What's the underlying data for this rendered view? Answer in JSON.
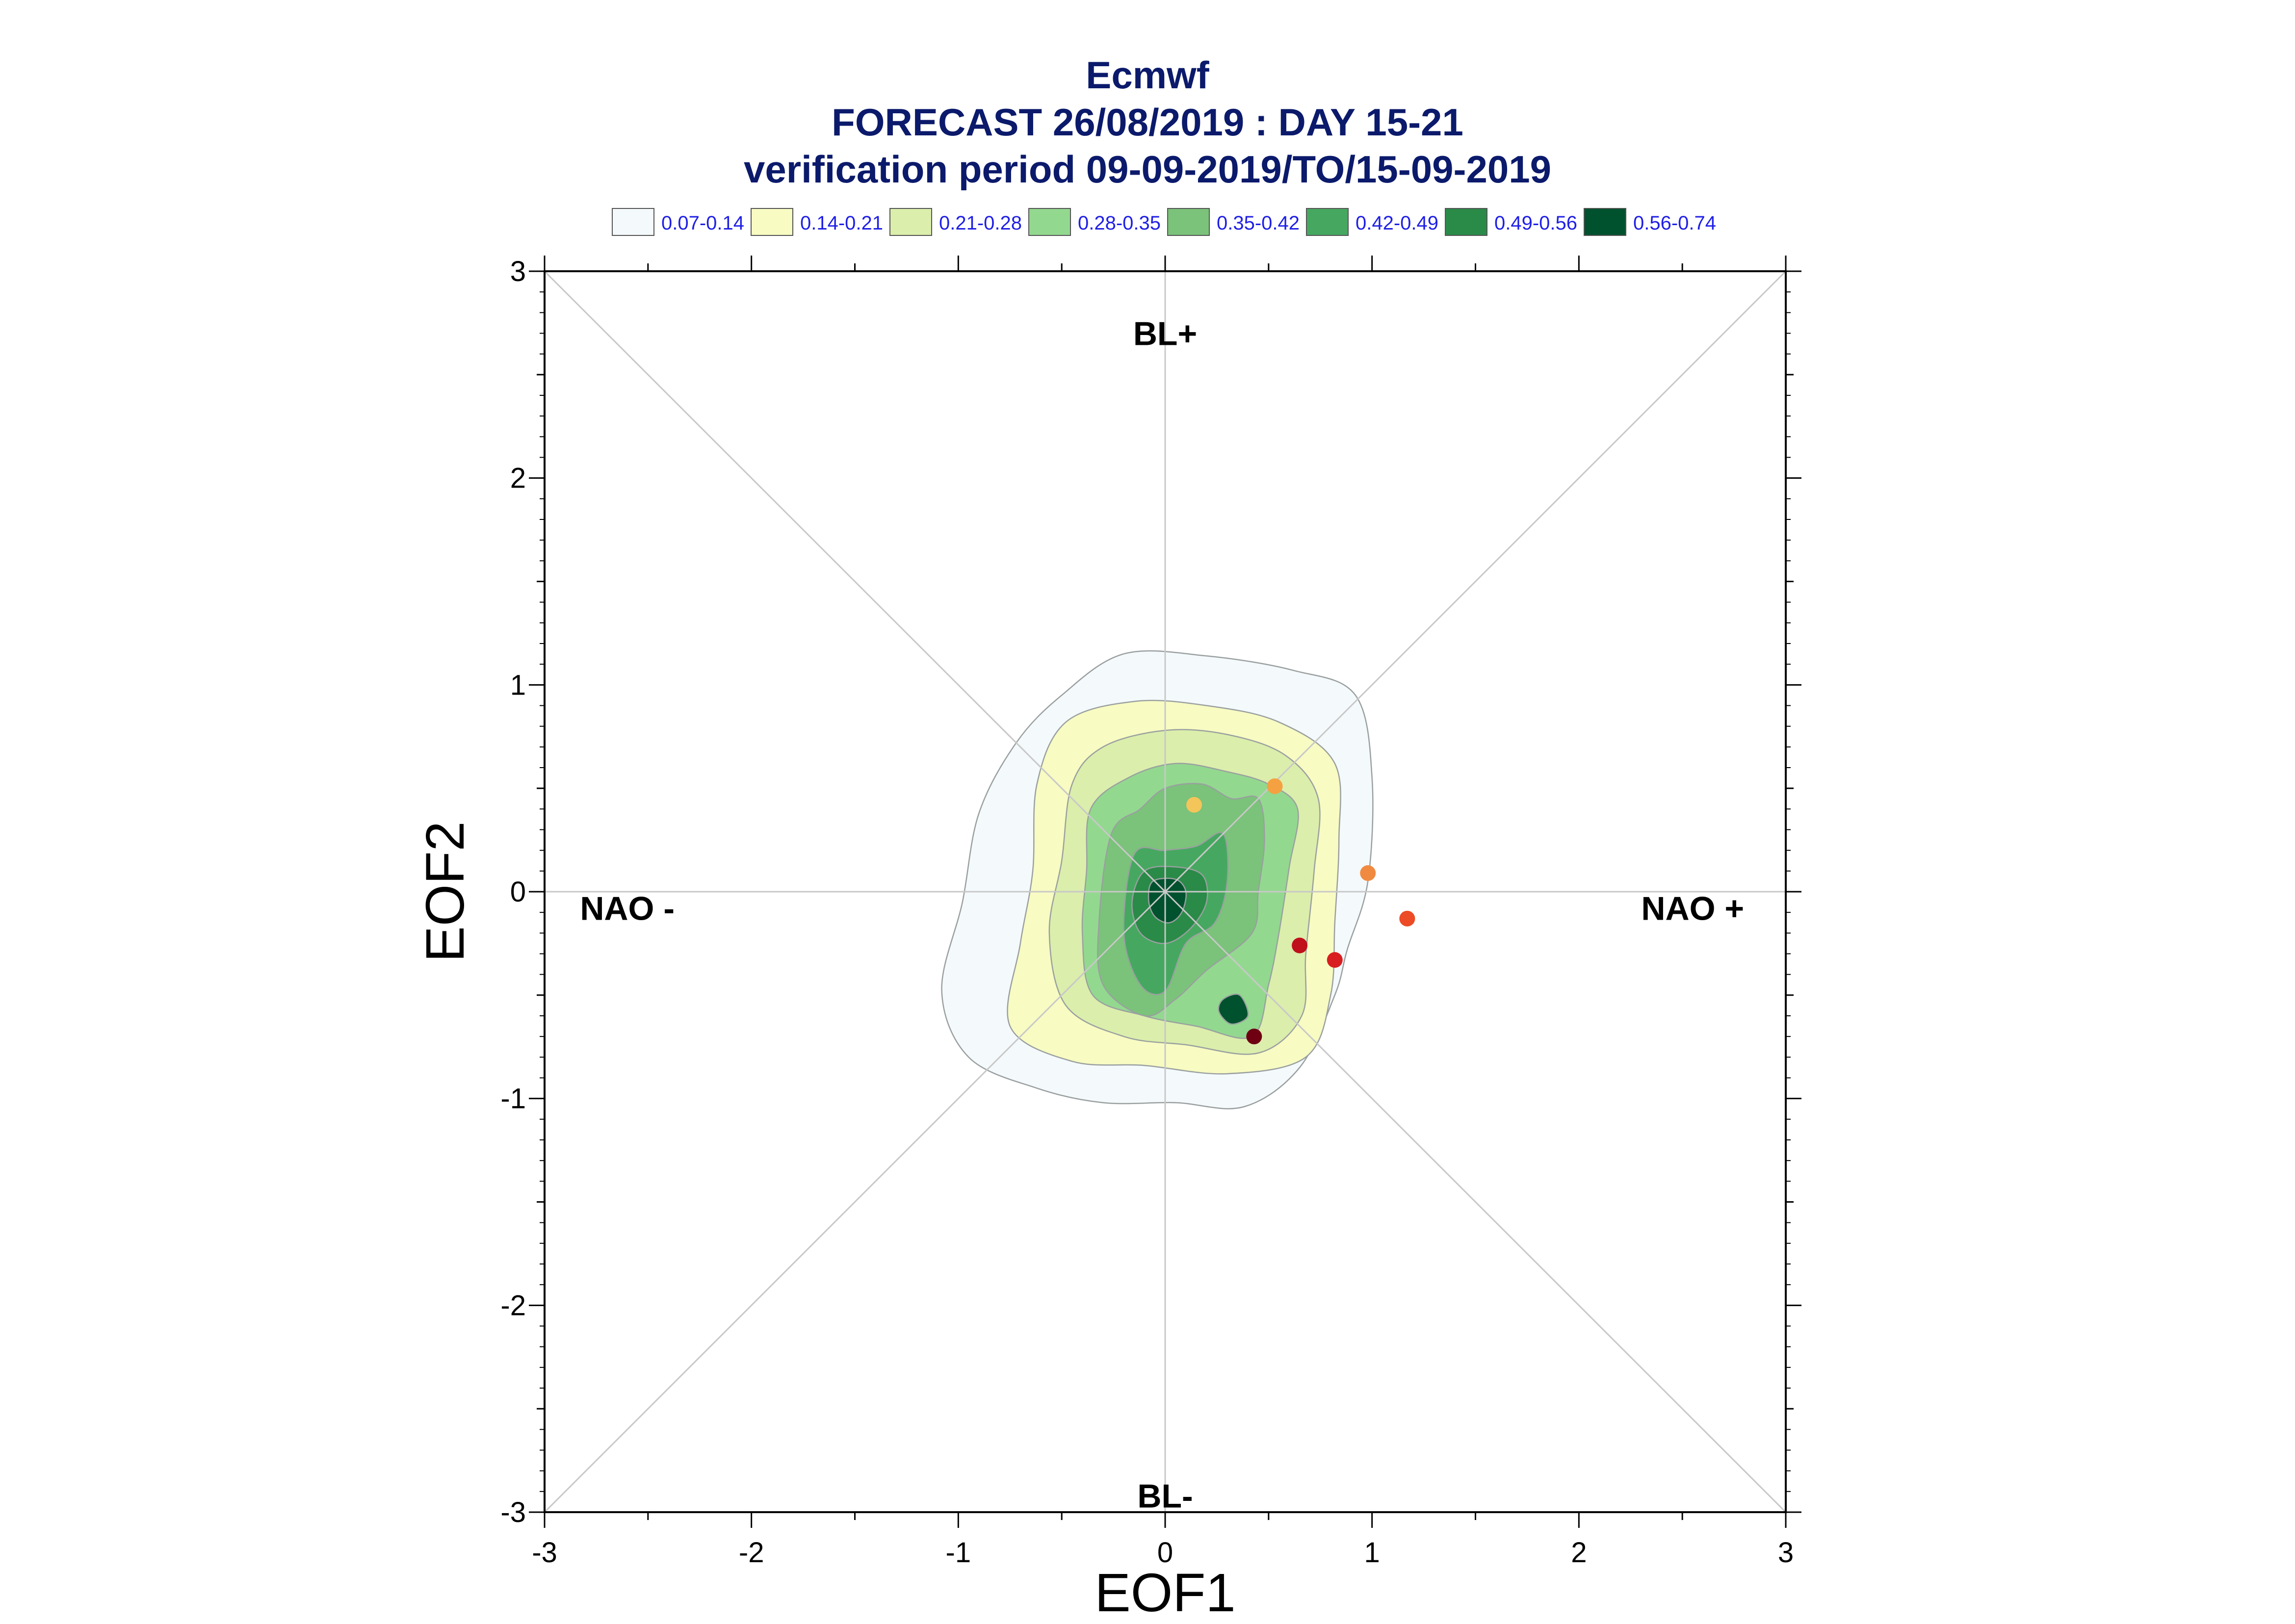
{
  "chart_data": {
    "type": "contour-scatter",
    "title": "Ecmwf",
    "subtitle": "FORECAST 26/08/2019 : DAY 15-21",
    "subtitle2": "verification period 09-09-2019/TO/15-09-2019",
    "xlabel": "EOF1",
    "ylabel": "EOF2",
    "xlim": [
      -3,
      3
    ],
    "ylim": [
      -3,
      3
    ],
    "xticks": [
      "-3",
      "-2",
      "-1",
      "0",
      "1",
      "2",
      "3"
    ],
    "yticks": [
      "-3",
      "-2",
      "-1",
      "0",
      "1",
      "2",
      "3"
    ],
    "legend_position": "top",
    "legend": [
      {
        "label": "0.07-0.14",
        "color": "#f4f9fb"
      },
      {
        "label": "0.14-0.21",
        "color": "#f8fbc2"
      },
      {
        "label": "0.21-0.28",
        "color": "#dbeeac"
      },
      {
        "label": "0.28-0.35",
        "color": "#93d88f"
      },
      {
        "label": "0.35-0.42",
        "color": "#7bc27a"
      },
      {
        "label": "0.42-0.49",
        "color": "#46a860"
      },
      {
        "label": "0.49-0.56",
        "color": "#2a8a48"
      },
      {
        "label": "0.56-0.74",
        "color": "#00512e"
      }
    ],
    "regime_labels": [
      {
        "text": "BL+",
        "x": 0,
        "y": 2.7
      },
      {
        "text": "BL-",
        "x": 0,
        "y": -2.92
      },
      {
        "text": "NAO -",
        "x": -2.6,
        "y": -0.08
      },
      {
        "text": "NAO +",
        "x": 2.55,
        "y": -0.08
      }
    ],
    "contours": [
      {
        "level": "0.07-0.14",
        "points": [
          [
            -0.9,
            0.38
          ],
          [
            -0.72,
            0.72
          ],
          [
            -0.5,
            0.95
          ],
          [
            -0.2,
            1.15
          ],
          [
            0.2,
            1.14
          ],
          [
            0.62,
            1.07
          ],
          [
            0.92,
            0.95
          ],
          [
            1.0,
            0.55
          ],
          [
            0.98,
            0.05
          ],
          [
            0.88,
            -0.28
          ],
          [
            0.82,
            -0.5
          ],
          [
            0.65,
            -0.85
          ],
          [
            0.38,
            -1.04
          ],
          [
            0.05,
            -1.02
          ],
          [
            -0.3,
            -1.02
          ],
          [
            -0.62,
            -0.95
          ],
          [
            -0.95,
            -0.8
          ],
          [
            -1.08,
            -0.48
          ],
          [
            -0.98,
            -0.05
          ]
        ]
      },
      {
        "level": "0.14-0.21",
        "points": [
          [
            -0.62,
            0.52
          ],
          [
            -0.48,
            0.82
          ],
          [
            -0.15,
            0.92
          ],
          [
            0.2,
            0.9
          ],
          [
            0.55,
            0.82
          ],
          [
            0.82,
            0.62
          ],
          [
            0.84,
            0.25
          ],
          [
            0.82,
            -0.15
          ],
          [
            0.8,
            -0.5
          ],
          [
            0.68,
            -0.8
          ],
          [
            0.3,
            -0.88
          ],
          [
            -0.1,
            -0.84
          ],
          [
            -0.45,
            -0.82
          ],
          [
            -0.75,
            -0.65
          ],
          [
            -0.7,
            -0.25
          ],
          [
            -0.64,
            0.1
          ]
        ]
      },
      {
        "level": "0.21-0.28",
        "points": [
          [
            -0.45,
            0.52
          ],
          [
            -0.3,
            0.7
          ],
          [
            0.0,
            0.78
          ],
          [
            0.3,
            0.76
          ],
          [
            0.58,
            0.66
          ],
          [
            0.74,
            0.45
          ],
          [
            0.72,
            0.1
          ],
          [
            0.68,
            -0.3
          ],
          [
            0.66,
            -0.6
          ],
          [
            0.45,
            -0.78
          ],
          [
            0.1,
            -0.74
          ],
          [
            -0.2,
            -0.7
          ],
          [
            -0.48,
            -0.55
          ],
          [
            -0.56,
            -0.2
          ],
          [
            -0.5,
            0.15
          ]
        ]
      },
      {
        "level": "0.28-0.35",
        "points": [
          [
            -0.36,
            0.4
          ],
          [
            -0.18,
            0.55
          ],
          [
            0.05,
            0.62
          ],
          [
            0.3,
            0.58
          ],
          [
            0.5,
            0.52
          ],
          [
            0.64,
            0.4
          ],
          [
            0.6,
            0.12
          ],
          [
            0.55,
            -0.2
          ],
          [
            0.5,
            -0.45
          ],
          [
            0.42,
            -0.7
          ],
          [
            0.15,
            -0.65
          ],
          [
            -0.1,
            -0.6
          ],
          [
            -0.35,
            -0.5
          ],
          [
            -0.4,
            -0.2
          ],
          [
            -0.38,
            0.1
          ]
        ]
      },
      {
        "level": "0.35-0.42",
        "points": [
          [
            -0.26,
            0.28
          ],
          [
            -0.12,
            0.4
          ],
          [
            0.0,
            0.5
          ],
          [
            0.18,
            0.52
          ],
          [
            0.32,
            0.45
          ],
          [
            0.45,
            0.45
          ],
          [
            0.48,
            0.25
          ],
          [
            0.45,
            0.0
          ],
          [
            0.42,
            -0.2
          ],
          [
            0.2,
            -0.38
          ],
          [
            0.05,
            -0.52
          ],
          [
            -0.1,
            -0.6
          ],
          [
            -0.3,
            -0.45
          ],
          [
            -0.32,
            -0.15
          ]
        ]
      },
      {
        "level": "0.42-0.49",
        "points": [
          [
            -0.15,
            0.18
          ],
          [
            0.0,
            0.2
          ],
          [
            0.15,
            0.22
          ],
          [
            0.28,
            0.28
          ],
          [
            0.3,
            0.05
          ],
          [
            0.24,
            -0.15
          ],
          [
            0.1,
            -0.25
          ],
          [
            0.0,
            -0.48
          ],
          [
            -0.12,
            -0.45
          ],
          [
            -0.2,
            -0.2
          ]
        ]
      },
      {
        "level": "0.49-0.56",
        "points": [
          [
            -0.1,
            0.1
          ],
          [
            0.05,
            0.12
          ],
          [
            0.18,
            0.08
          ],
          [
            0.2,
            -0.05
          ],
          [
            0.12,
            -0.18
          ],
          [
            0.0,
            -0.25
          ],
          [
            -0.12,
            -0.2
          ],
          [
            -0.16,
            -0.05
          ]
        ]
      },
      {
        "level": "0.56-0.74",
        "points": [
          [
            -0.06,
            0.05
          ],
          [
            0.05,
            0.06
          ],
          [
            0.1,
            0.0
          ],
          [
            0.08,
            -0.1
          ],
          [
            0.02,
            -0.15
          ],
          [
            -0.05,
            -0.12
          ],
          [
            -0.08,
            -0.04
          ]
        ]
      },
      {
        "level": "0.56-0.74",
        "points": [
          [
            0.28,
            -0.52
          ],
          [
            0.36,
            -0.5
          ],
          [
            0.4,
            -0.6
          ],
          [
            0.32,
            -0.64
          ],
          [
            0.26,
            -0.58
          ]
        ]
      }
    ],
    "points": [
      {
        "x": 0.14,
        "y": 0.42,
        "color": "#f3c55a"
      },
      {
        "x": 0.53,
        "y": 0.51,
        "color": "#f5a142"
      },
      {
        "x": 0.98,
        "y": 0.09,
        "color": "#f08a40"
      },
      {
        "x": 1.17,
        "y": -0.13,
        "color": "#ec4b26"
      },
      {
        "x": 0.65,
        "y": -0.26,
        "color": "#c0101c"
      },
      {
        "x": 0.82,
        "y": -0.33,
        "color": "#d81e20"
      },
      {
        "x": 0.43,
        "y": -0.7,
        "color": "#6e0012"
      }
    ]
  }
}
